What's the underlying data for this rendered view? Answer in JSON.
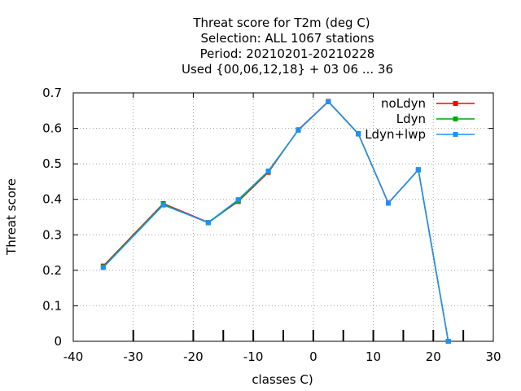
{
  "chart_data": {
    "type": "line",
    "title_lines": [
      "Threat score  for T2m (deg C)",
      "Selection: ALL   1067 stations",
      "Period: 20210201-20210228",
      "Used {00,06,12,18} + 03 06 ... 36"
    ],
    "xlabel": "classes C)",
    "ylabel": "Threat score",
    "xlim": [
      -40,
      30
    ],
    "ylim": [
      0,
      0.7
    ],
    "xticks": [
      -40,
      -30,
      -20,
      -10,
      0,
      10,
      20,
      30
    ],
    "yticks": [
      0,
      0.1,
      0.2,
      0.3,
      0.4,
      0.5,
      0.6,
      0.7
    ],
    "xtick_labels": [
      "-40",
      "-30",
      "-20",
      "-10",
      "0",
      "10",
      "20",
      "30"
    ],
    "ytick_labels": [
      "0",
      "0.1",
      "0.2",
      "0.3",
      "0.4",
      "0.5",
      "0.6",
      "0.7"
    ],
    "class_limits": [
      -30,
      -20,
      -15,
      -10,
      -5,
      0,
      5,
      10,
      15,
      20,
      25
    ],
    "grid": true,
    "legend_position": "top-right",
    "series": [
      {
        "name": "noLdyn",
        "color": "#ff0000",
        "x": [
          -35,
          -25,
          -17.5,
          -12.5,
          -7.5,
          -2.5,
          2.5,
          7.5,
          12.5,
          17.5,
          22.5
        ],
        "y": [
          0.212,
          0.388,
          0.335,
          0.394,
          0.476,
          0.596,
          0.676,
          0.585,
          0.39,
          0.483,
          0.0
        ]
      },
      {
        "name": "Ldyn",
        "color": "#00aa00",
        "x": [
          -35,
          -25,
          -17.5,
          -12.5,
          -7.5,
          -2.5,
          2.5,
          7.5,
          12.5,
          17.5,
          22.5
        ],
        "y": [
          0.21,
          0.386,
          0.334,
          0.396,
          0.478,
          0.595,
          0.675,
          0.585,
          0.389,
          0.483,
          0.0
        ]
      },
      {
        "name": "Ldyn+lwp",
        "color": "#1e90ff",
        "x": [
          -35,
          -25,
          -17.5,
          -12.5,
          -7.5,
          -2.5,
          2.5,
          7.5,
          12.5,
          17.5,
          22.5
        ],
        "y": [
          0.208,
          0.384,
          0.335,
          0.399,
          0.48,
          0.595,
          0.675,
          0.584,
          0.389,
          0.484,
          0.0
        ]
      }
    ]
  }
}
